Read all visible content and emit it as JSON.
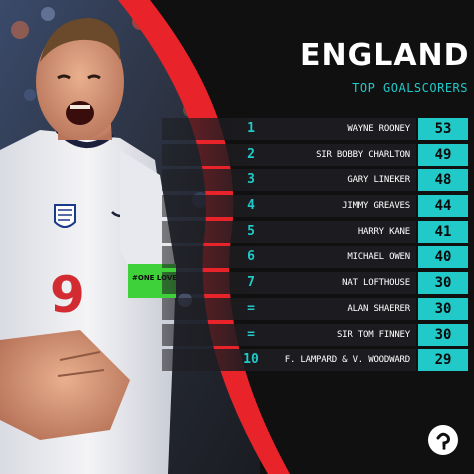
{
  "header": {
    "title": "ENGLAND",
    "subtitle": "TOP GOALSCORERS"
  },
  "rows": [
    {
      "rank": "1",
      "name": "WAYNE ROONEY",
      "goals": "53"
    },
    {
      "rank": "2",
      "name": "SIR BOBBY CHARLTON",
      "goals": "49"
    },
    {
      "rank": "3",
      "name": "GARY LINEKER",
      "goals": "48"
    },
    {
      "rank": "4",
      "name": "JIMMY GREAVES",
      "goals": "44"
    },
    {
      "rank": "5",
      "name": "HARRY KANE",
      "goals": "41"
    },
    {
      "rank": "6",
      "name": "MICHAEL OWEN",
      "goals": "40"
    },
    {
      "rank": "7",
      "name": "NAT LOFTHOUSE",
      "goals": "30"
    },
    {
      "rank": "=",
      "name": "ALAN SHAERER",
      "goals": "30"
    },
    {
      "rank": "=",
      "name": "SIR TOM FINNEY",
      "goals": "30"
    },
    {
      "rank": "10",
      "name": "F. LAMPARD & V. WOODWARD",
      "goals": "29"
    }
  ],
  "player": {
    "shirt_number": "9",
    "armband_text": "#ONE LOVE",
    "crest": "three-lions-crest",
    "kit_brand": "nike-swoosh"
  },
  "colors": {
    "accent": "#22c9c9",
    "stripe_red": "#e8232a",
    "panel_dark": "#101010",
    "row_dark": "#1c1c20",
    "armband_green": "#3fd13a"
  },
  "icons": {
    "logo": "brand-logo-icon"
  }
}
